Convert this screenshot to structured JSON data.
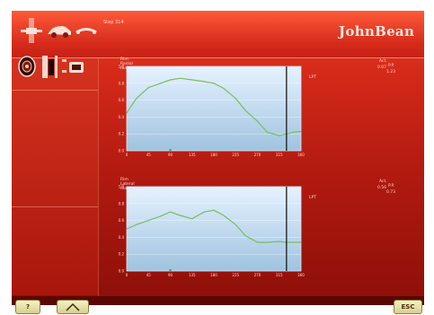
{
  "window": {
    "title": "Step 314"
  },
  "brand": {
    "logo_text": "JohnBean"
  },
  "charts": [
    {
      "title": "Rim Radial Runout",
      "marker_label": "LPT",
      "values_header": [
        "Act.",
        "P.P."
      ],
      "values": [
        "0.07",
        "1.23"
      ],
      "y_ticks": [
        "1.0",
        "0.8",
        "0.6",
        "0.4",
        "0.2",
        "0.0"
      ],
      "x_ticks": [
        "0",
        "45",
        "90",
        "135",
        "180",
        "225",
        "270",
        "315",
        "360"
      ],
      "chart_data": {
        "type": "line",
        "title": "Rim Radial Runout",
        "x": [
          0,
          20,
          45,
          70,
          90,
          110,
          135,
          160,
          180,
          200,
          225,
          245,
          270,
          290,
          315,
          330,
          345,
          360
        ],
        "y": [
          0.45,
          0.62,
          0.75,
          0.8,
          0.84,
          0.86,
          0.84,
          0.82,
          0.8,
          0.74,
          0.62,
          0.48,
          0.35,
          0.22,
          0.18,
          0.2,
          0.22,
          0.23
        ],
        "xlim": [
          0,
          360
        ],
        "ylim": [
          0,
          1
        ],
        "marker_x": 330,
        "grid": true
      }
    },
    {
      "title": "Rim Lateral Runout",
      "marker_label": "LPT",
      "values_header": [
        "Act.",
        "P.P."
      ],
      "values": [
        "0.56",
        "0.73"
      ],
      "y_ticks": [
        "1.0",
        "0.8",
        "0.6",
        "0.4",
        "0.2",
        "0.0"
      ],
      "x_ticks": [
        "0",
        "45",
        "90",
        "135",
        "180",
        "225",
        "270",
        "315",
        "360"
      ],
      "chart_data": {
        "type": "line",
        "title": "Rim Lateral Runout",
        "x": [
          0,
          20,
          45,
          70,
          90,
          110,
          135,
          160,
          180,
          200,
          225,
          245,
          270,
          290,
          315,
          330,
          345,
          360
        ],
        "y": [
          0.5,
          0.55,
          0.6,
          0.65,
          0.7,
          0.66,
          0.62,
          0.7,
          0.72,
          0.66,
          0.55,
          0.42,
          0.34,
          0.34,
          0.35,
          0.34,
          0.34,
          0.34
        ],
        "xlim": [
          0,
          360
        ],
        "ylim": [
          0,
          1
        ],
        "marker_x": 330,
        "grid": true
      }
    }
  ],
  "buttons": {
    "help": "?",
    "esc": "ESC"
  },
  "colors": {
    "accent": "#d62b1b",
    "plot_bg_top": "#e6f2ff",
    "plot_bg_bottom": "#9fc3df",
    "series": "#78c05c"
  }
}
